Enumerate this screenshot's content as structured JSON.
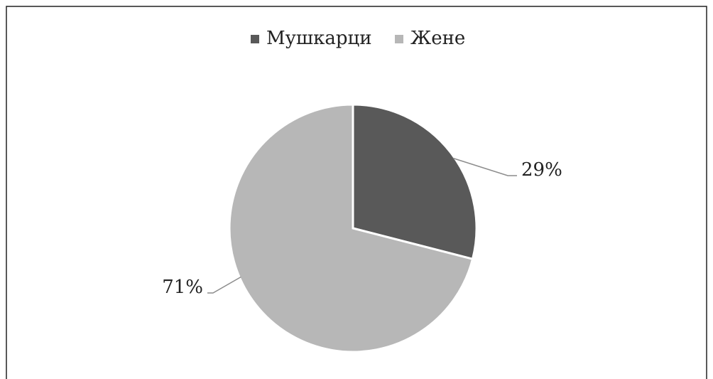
{
  "chart_data": {
    "type": "pie",
    "categories": [
      "Мушкарци",
      "Жене"
    ],
    "values": [
      29,
      71
    ],
    "value_labels": [
      "29%",
      "71%"
    ],
    "colors": [
      "#595959",
      "#b7b7b7"
    ],
    "legend": "top"
  }
}
